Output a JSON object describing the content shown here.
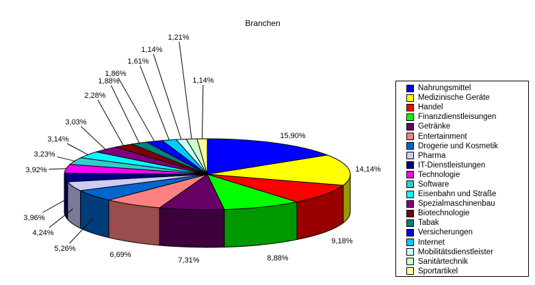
{
  "chart_data": {
    "type": "pie",
    "title": "Branchen",
    "style": "3d-pie",
    "legend_position": "right",
    "background_color": "#FFFFFF",
    "legend_border_color": "#000000",
    "slice_outline_color": "#000000",
    "series": [
      {
        "label": "Nahrungsmittel",
        "value": 15.9,
        "display": "15,90%",
        "color": "#0000FF"
      },
      {
        "label": "Medizinische Geräte",
        "value": 14.14,
        "display": "14,14%",
        "color": "#FFFF00"
      },
      {
        "label": "Handel",
        "value": 9.18,
        "display": "9,18%",
        "color": "#FF0000"
      },
      {
        "label": "Finanzdienstleisungen",
        "value": 8.88,
        "display": "8,88%",
        "color": "#00FF00"
      },
      {
        "label": "Getränke",
        "value": 7.31,
        "display": "7,31%",
        "color": "#660066"
      },
      {
        "label": "Entertainment",
        "value": 6.69,
        "display": "6,69%",
        "color": "#FF8080"
      },
      {
        "label": "Drogerie und Kosmetik",
        "value": 5.26,
        "display": "5,26%",
        "color": "#0066CC"
      },
      {
        "label": "Pharma",
        "value": 4.24,
        "display": "4,24%",
        "color": "#CCCCFF"
      },
      {
        "label": "IT-Dienstleistungen",
        "value": 3.96,
        "display": "3,96%",
        "color": "#000080"
      },
      {
        "label": "Technologie",
        "value": 3.92,
        "display": "3,92%",
        "color": "#FF00FF"
      },
      {
        "label": "Software",
        "value": 3.23,
        "display": "3,23%",
        "color": "#33CCCC"
      },
      {
        "label": "Eisenbahn und Straße",
        "value": 3.14,
        "display": "3,14%",
        "color": "#00FFFF"
      },
      {
        "label": "Spezialmaschinenbau",
        "value": 3.03,
        "display": "3,03%",
        "color": "#800080"
      },
      {
        "label": "Biotechnologie",
        "value": 2.28,
        "display": "2,28%",
        "color": "#800000"
      },
      {
        "label": "Tabak",
        "value": 1.88,
        "display": "1,88%",
        "color": "#008080"
      },
      {
        "label": "Versicherungen",
        "value": 1.86,
        "display": "1,86%",
        "color": "#0000FF"
      },
      {
        "label": "Internet",
        "value": 1.61,
        "display": "1,61%",
        "color": "#00CCFF"
      },
      {
        "label": "Mobilitätsdienstleister",
        "value": 1.14,
        "display": "1,14%",
        "color": "#CCFFFF"
      },
      {
        "label": "Sanitärtechnik",
        "value": 1.21,
        "display": "1,21%",
        "color": "#CCFFCC"
      },
      {
        "label": "Sportartikel",
        "value": 1.14,
        "display": "1,14%",
        "color": "#FFFF99"
      }
    ]
  }
}
